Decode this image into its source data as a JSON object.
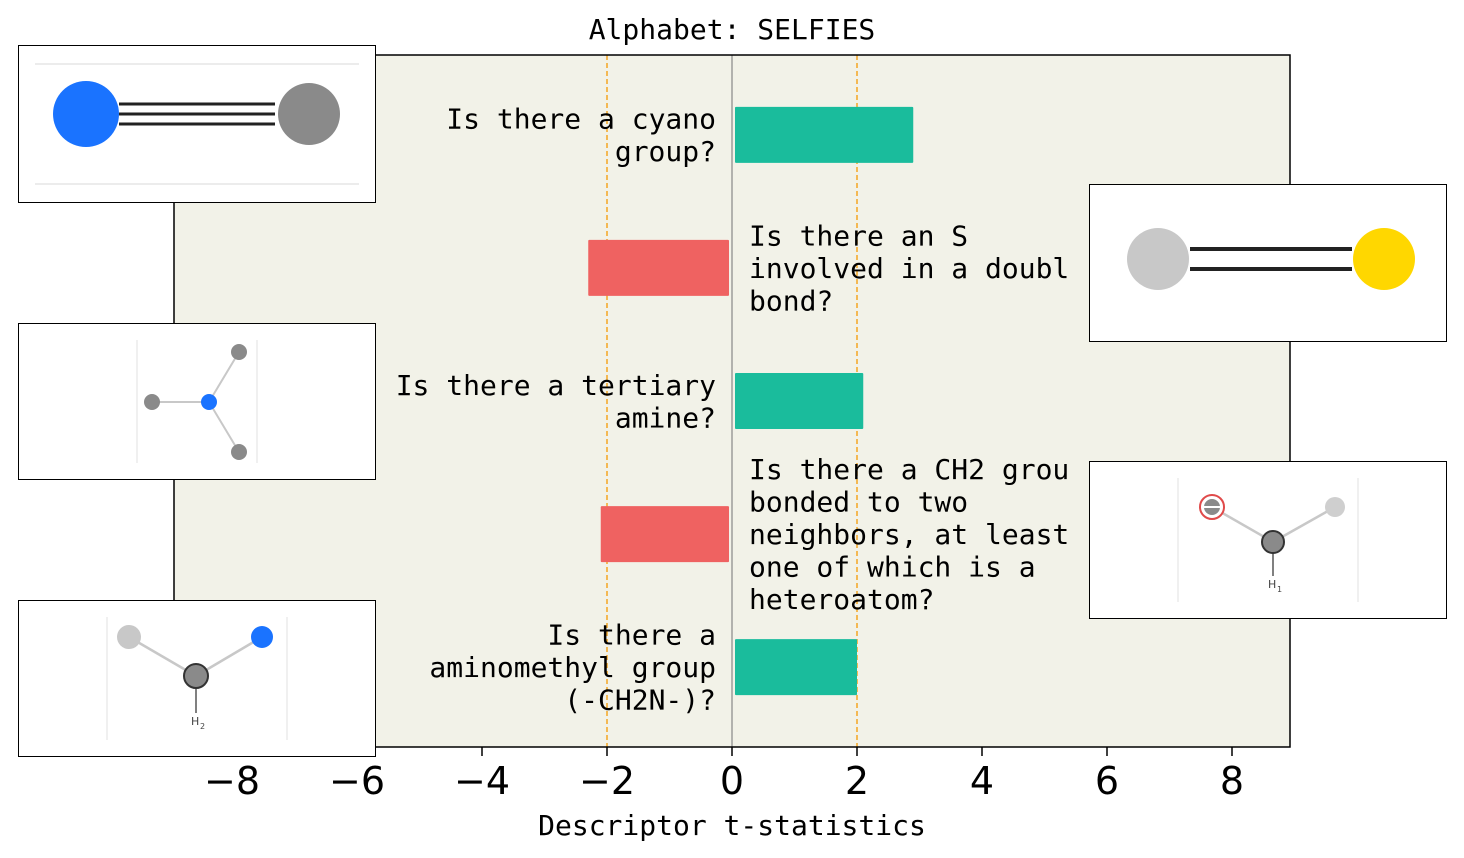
{
  "chart_data": {
    "type": "bar",
    "orientation": "horizontal",
    "title": "Alphabet: SELFIES",
    "xlabel": "Descriptor t-statistics",
    "ylabel": "",
    "xlim": [
      -8,
      9
    ],
    "xticks": [
      -8,
      -6,
      -4,
      -2,
      0,
      2,
      4,
      6,
      8
    ],
    "xtick_labels": [
      "−8",
      "−6",
      "−4",
      "−2",
      "0",
      "2",
      "4",
      "6",
      "8"
    ],
    "reference_lines": [
      -2,
      2
    ],
    "grid": false,
    "background": "#f2f2e8",
    "colors": {
      "positive": "#1abc9c",
      "negative": "#ef6261",
      "reference": "#f5a623"
    },
    "bars": [
      {
        "label": [
          "Is there a cyano",
          "group?"
        ],
        "value": 2.9
      },
      {
        "label": [
          "Is there an S",
          "involved in a doubl",
          "bond?"
        ],
        "value": -2.3
      },
      {
        "label": [
          "Is there a tertiary",
          "amine?"
        ],
        "value": 2.1
      },
      {
        "label": [
          "Is there a CH2 grou",
          "bonded to two",
          "neighbors, at least",
          "one of which is a",
          "heteroatom?"
        ],
        "value": -2.1
      },
      {
        "label": [
          "Is there a",
          "aminomethyl group",
          "(-CH2N-)?"
        ],
        "value": 2.0
      }
    ]
  },
  "insets": {
    "subscript_h2": "H",
    "subscript_2": "2",
    "subscript_h1": "H",
    "subscript_1": "1"
  }
}
